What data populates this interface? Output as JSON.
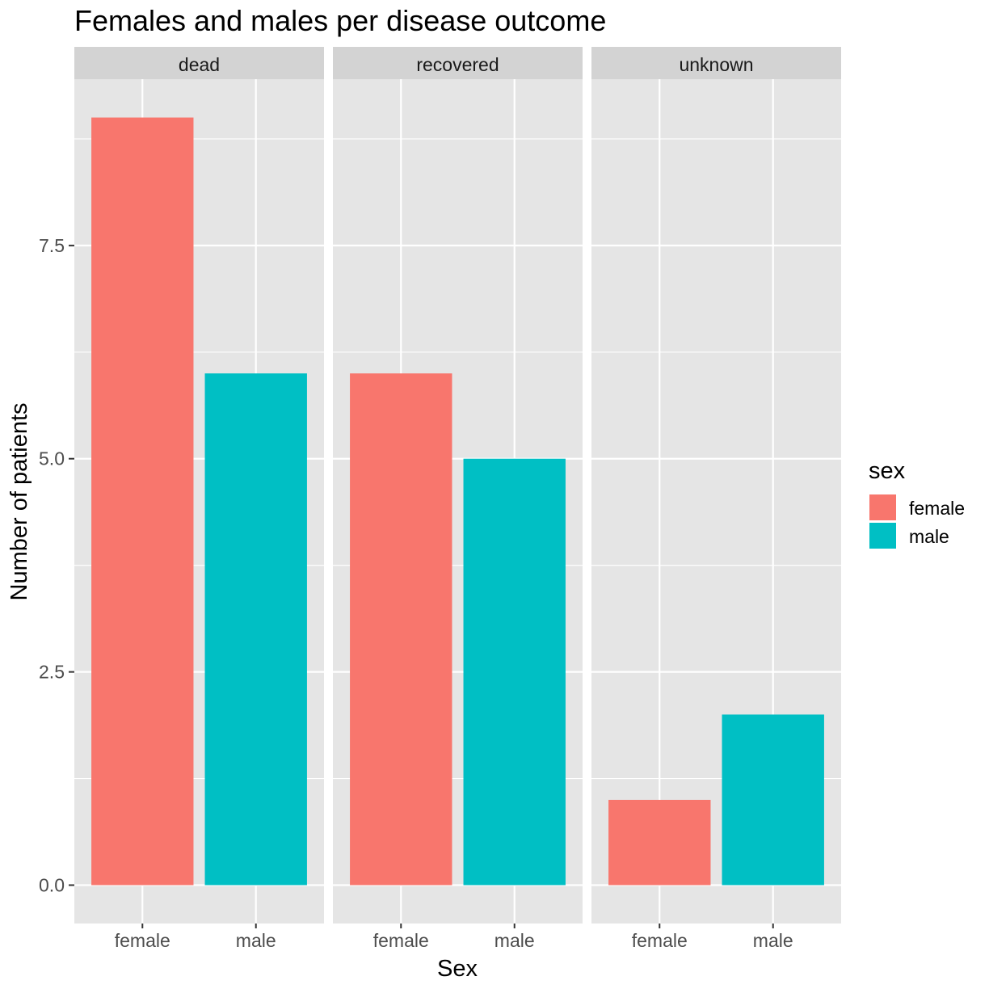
{
  "chart_data": {
    "type": "bar",
    "title": "Females and males per disease outcome",
    "xlabel": "Sex",
    "ylabel": "Number of patients",
    "ylim": [
      -0.45,
      9.45
    ],
    "yticks": [
      0,
      2.5,
      5,
      7.5
    ],
    "ytick_labels": [
      "0.0",
      "2.5",
      "5.0",
      "7.5"
    ],
    "categories": [
      "female",
      "male"
    ],
    "facets": [
      {
        "label": "dead",
        "values": [
          9,
          6
        ]
      },
      {
        "label": "recovered",
        "values": [
          6,
          5
        ]
      },
      {
        "label": "unknown",
        "values": [
          1,
          2
        ]
      }
    ],
    "legend": {
      "title": "sex",
      "position": "right",
      "items": [
        {
          "label": "female",
          "color": "#F8766D"
        },
        {
          "label": "male",
          "color": "#00BFC4"
        }
      ]
    },
    "colors": {
      "panel_background": "#E5E5E5",
      "strip_background": "#D3D3D3",
      "grid": "#FFFFFF"
    },
    "grid": true
  }
}
